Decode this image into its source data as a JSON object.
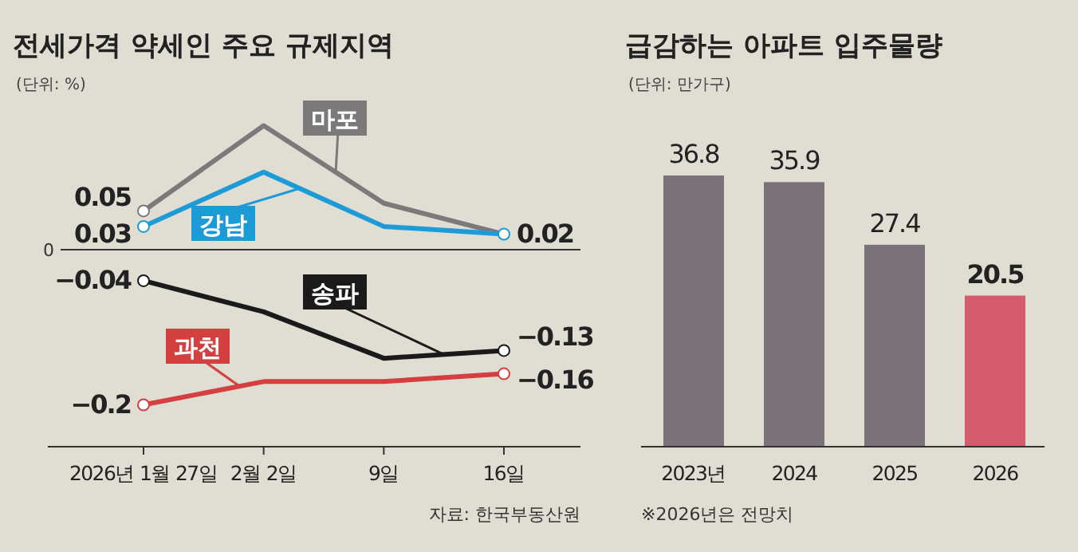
{
  "chart_data": [
    {
      "type": "line",
      "title": "전세가격 약세인 주요 규제지역",
      "subtitle": "(단위: %)",
      "categories": [
        "2026년 1월 27일",
        "2월 2일",
        "9일",
        "16일"
      ],
      "grid": false,
      "tick_labels": "x",
      "ref_lines": [
        {
          "axis": "y",
          "value": 0,
          "label": "0"
        }
      ],
      "series": [
        {
          "name": "마포",
          "color": "#7b797a",
          "values": [
            0.05,
            0.16,
            0.06,
            0.02
          ],
          "value_labels": [
            "0.05",
            null,
            null,
            null
          ]
        },
        {
          "name": "강남",
          "color": "#1d9bd7",
          "values": [
            0.03,
            0.1,
            0.03,
            0.02
          ],
          "value_labels": [
            "0.03",
            null,
            null,
            "0.02"
          ]
        },
        {
          "name": "송파",
          "color": "#1a1a1a",
          "values": [
            -0.04,
            -0.08,
            -0.14,
            -0.13
          ],
          "value_labels": [
            "−0.04",
            null,
            null,
            "−0.13"
          ]
        },
        {
          "name": "과천",
          "color": "#d43f3f",
          "values": [
            -0.2,
            -0.17,
            -0.17,
            -0.16
          ],
          "value_labels": [
            "−0.2",
            null,
            null,
            "−0.16"
          ]
        }
      ],
      "annotations": [
        "자료: 한국부동산원"
      ]
    },
    {
      "type": "bar",
      "title": "급감하는 아파트 입주물량",
      "subtitle": "(단위: 만가구)",
      "categories": [
        "2023년",
        "2024",
        "2025",
        "2026"
      ],
      "values": [
        36.8,
        35.9,
        27.4,
        20.5
      ],
      "colors": [
        "#7b7178",
        "#7b7178",
        "#7b7178",
        "#d65a6e"
      ],
      "data_labels": true,
      "tick_labels": "x",
      "annotations": [
        "※2026년은 전망치"
      ]
    }
  ]
}
